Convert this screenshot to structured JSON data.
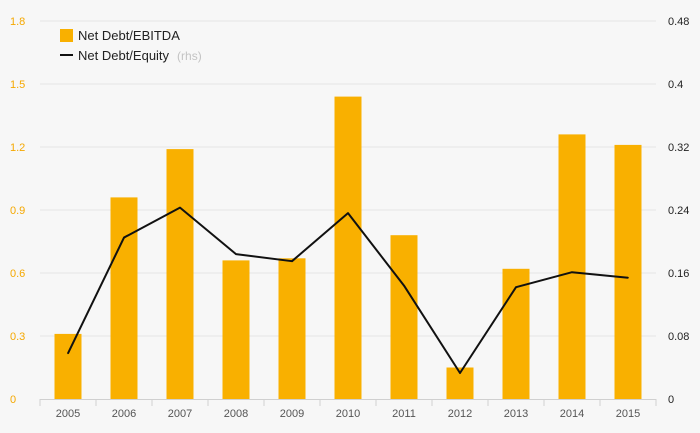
{
  "colors": {
    "bar": "#f9b000",
    "line": "#111111",
    "left_axis_text": "#f5a800",
    "right_axis_text": "#222222",
    "grid": "#e6e6e6",
    "background": "#f7f7f7"
  },
  "legend": {
    "bar_label": "Net Debt/EBITDA",
    "line_label": "Net Debt/Equity",
    "line_suffix": "(rhs)"
  },
  "chart_data": {
    "type": "bar",
    "categories": [
      "2005",
      "2006",
      "2007",
      "2008",
      "2009",
      "2010",
      "2011",
      "2012",
      "2013",
      "2014",
      "2015"
    ],
    "series": [
      {
        "name": "Net Debt/EBITDA",
        "type": "bar",
        "axis": "left",
        "values": [
          0.31,
          0.96,
          1.19,
          0.66,
          0.67,
          1.44,
          0.78,
          0.15,
          0.62,
          1.26,
          1.21
        ]
      },
      {
        "name": "Net Debt/Equity (rhs)",
        "type": "line",
        "axis": "right",
        "values": [
          0.058,
          0.205,
          0.243,
          0.184,
          0.175,
          0.236,
          0.144,
          0.033,
          0.142,
          0.161,
          0.154
        ]
      }
    ],
    "left_axis": {
      "ticks": [
        "0",
        "0.3",
        "0.6",
        "0.9",
        "1.2",
        "1.5",
        "1.8"
      ],
      "ylim": [
        0,
        1.8
      ]
    },
    "right_axis": {
      "ticks": [
        "0",
        "0.08",
        "0.16",
        "0.24",
        "0.32",
        "0.4",
        "0.48"
      ],
      "ylim": [
        0,
        0.48
      ]
    },
    "grid": true,
    "legend_position": "top-left"
  }
}
